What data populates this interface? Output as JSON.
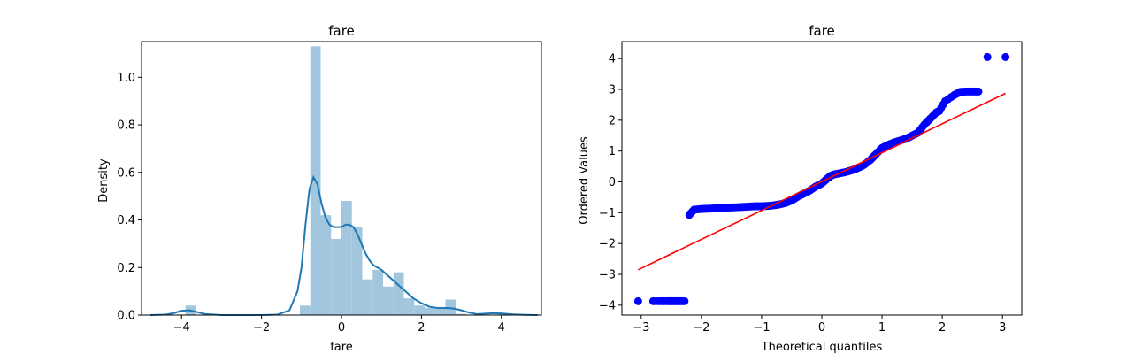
{
  "chart_data": [
    {
      "type": "histogram",
      "title": "fare",
      "xlabel": "fare",
      "ylabel": "Density",
      "xlim": [
        -5.0,
        5.0
      ],
      "ylim": [
        0.0,
        1.15
      ],
      "xticks": [
        -4,
        -2,
        0,
        2,
        4
      ],
      "xtick_labels": [
        "−4",
        "−2",
        "0",
        "2",
        "4"
      ],
      "yticks": [
        0.0,
        0.2,
        0.4,
        0.6,
        0.8,
        1.0
      ],
      "ytick_labels": [
        "0.0",
        "0.2",
        "0.4",
        "0.6",
        "0.8",
        "1.0"
      ],
      "grid": false,
      "colors": {
        "bars": "#a1c6de",
        "kde": "#1f77b4"
      },
      "bins": [
        {
          "x0": -3.9,
          "x1": -3.64,
          "density": 0.04
        },
        {
          "x0": -1.04,
          "x1": -0.78,
          "density": 0.04
        },
        {
          "x0": -0.78,
          "x1": -0.52,
          "density": 1.13
        },
        {
          "x0": -0.52,
          "x1": -0.26,
          "density": 0.42
        },
        {
          "x0": -0.26,
          "x1": 0.0,
          "density": 0.32
        },
        {
          "x0": 0.0,
          "x1": 0.26,
          "density": 0.48
        },
        {
          "x0": 0.26,
          "x1": 0.52,
          "density": 0.37
        },
        {
          "x0": 0.52,
          "x1": 0.78,
          "density": 0.15
        },
        {
          "x0": 0.78,
          "x1": 1.04,
          "density": 0.19
        },
        {
          "x0": 1.04,
          "x1": 1.3,
          "density": 0.12
        },
        {
          "x0": 1.3,
          "x1": 1.56,
          "density": 0.18
        },
        {
          "x0": 1.56,
          "x1": 1.82,
          "density": 0.07
        },
        {
          "x0": 1.82,
          "x1": 2.08,
          "density": 0.04
        },
        {
          "x0": 2.08,
          "x1": 2.34,
          "density": 0.03
        },
        {
          "x0": 2.34,
          "x1": 2.6,
          "density": 0.03
        },
        {
          "x0": 2.6,
          "x1": 2.86,
          "density": 0.065
        },
        {
          "x0": 2.86,
          "x1": 3.12,
          "density": 0.005
        },
        {
          "x0": 3.9,
          "x1": 4.16,
          "density": 0.005
        }
      ],
      "kde": {
        "x": [
          -4.8,
          -4.4,
          -4.2,
          -4.0,
          -3.8,
          -3.6,
          -3.4,
          -3.0,
          -2.5,
          -2.0,
          -1.6,
          -1.3,
          -1.1,
          -1.0,
          -0.9,
          -0.8,
          -0.7,
          -0.6,
          -0.5,
          -0.4,
          -0.3,
          -0.2,
          -0.1,
          0.0,
          0.1,
          0.2,
          0.3,
          0.4,
          0.5,
          0.6,
          0.7,
          0.8,
          0.9,
          1.0,
          1.2,
          1.4,
          1.6,
          1.8,
          2.0,
          2.2,
          2.4,
          2.6,
          2.8,
          3.0,
          3.2,
          3.4,
          3.6,
          3.8,
          4.0,
          4.3,
          4.6,
          4.9
        ],
        "y": [
          0.0,
          0.002,
          0.008,
          0.018,
          0.02,
          0.012,
          0.004,
          0.0,
          0.0,
          0.0,
          0.002,
          0.02,
          0.1,
          0.2,
          0.38,
          0.53,
          0.58,
          0.55,
          0.47,
          0.41,
          0.38,
          0.37,
          0.37,
          0.37,
          0.38,
          0.38,
          0.37,
          0.34,
          0.3,
          0.26,
          0.23,
          0.21,
          0.2,
          0.19,
          0.16,
          0.13,
          0.1,
          0.07,
          0.05,
          0.035,
          0.03,
          0.03,
          0.028,
          0.02,
          0.01,
          0.004,
          0.006,
          0.008,
          0.007,
          0.003,
          0.001,
          0.0
        ]
      }
    },
    {
      "type": "scatter",
      "title": "fare",
      "xlabel": "Theoretical quantiles",
      "ylabel": "Ordered Values",
      "xlim": [
        -3.32,
        3.32
      ],
      "ylim": [
        -4.32,
        4.55
      ],
      "xticks": [
        -3,
        -2,
        -1,
        0,
        1,
        2,
        3
      ],
      "xtick_labels": [
        "−3",
        "−2",
        "−1",
        "0",
        "1",
        "2",
        "3"
      ],
      "yticks": [
        -4,
        -3,
        -2,
        -1,
        0,
        1,
        2,
        3,
        4
      ],
      "ytick_labels": [
        "−4",
        "−3",
        "−2",
        "−1",
        "0",
        "1",
        "2",
        "3",
        "4"
      ],
      "grid": false,
      "colors": {
        "points": "#0000ff",
        "fit_line": "#ff0000"
      },
      "fit_line": {
        "x": [
          -3.05,
          3.05
        ],
        "y": [
          -2.85,
          2.87
        ]
      },
      "points": {
        "x": [
          -3.05,
          -2.8,
          -2.66,
          -2.55,
          -2.46,
          -2.38,
          -2.28,
          -2.2,
          -2.12,
          -2.0,
          -1.9,
          -1.8,
          -1.7,
          -1.6,
          -1.5,
          -1.4,
          -1.3,
          -1.2,
          -1.1,
          -1.0,
          -0.9,
          -0.8,
          -0.7,
          -0.6,
          -0.5,
          -0.4,
          -0.3,
          -0.2,
          -0.1,
          0.0,
          0.1,
          0.15,
          0.2,
          0.3,
          0.4,
          0.5,
          0.6,
          0.7,
          0.8,
          0.85,
          0.9,
          1.0,
          1.1,
          1.2,
          1.3,
          1.4,
          1.5,
          1.6,
          1.7,
          1.8,
          1.9,
          1.95,
          2.05,
          2.2,
          2.3,
          2.4,
          2.5,
          2.6,
          2.75,
          3.05
        ],
        "y": [
          -3.87,
          -3.87,
          -3.87,
          -3.87,
          -3.87,
          -3.87,
          -3.87,
          -1.07,
          -0.9,
          -0.88,
          -0.87,
          -0.86,
          -0.85,
          -0.84,
          -0.83,
          -0.82,
          -0.81,
          -0.8,
          -0.79,
          -0.79,
          -0.78,
          -0.76,
          -0.73,
          -0.68,
          -0.6,
          -0.48,
          -0.38,
          -0.28,
          -0.15,
          -0.05,
          0.12,
          0.2,
          0.24,
          0.28,
          0.32,
          0.38,
          0.45,
          0.55,
          0.7,
          0.8,
          0.9,
          1.1,
          1.2,
          1.28,
          1.34,
          1.4,
          1.5,
          1.6,
          1.85,
          2.05,
          2.25,
          2.3,
          2.62,
          2.82,
          2.92,
          2.93,
          2.93,
          2.93,
          4.05,
          4.05
        ]
      }
    }
  ]
}
